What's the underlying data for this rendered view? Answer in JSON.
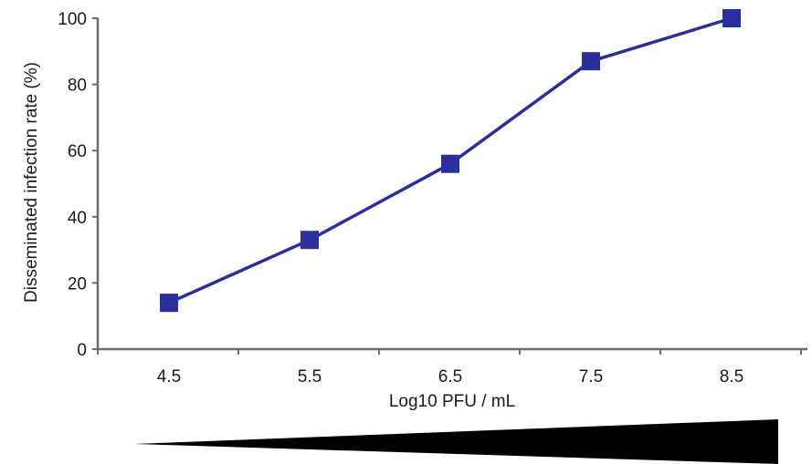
{
  "chart_data": {
    "type": "line",
    "categories": [
      "4.5",
      "5.5",
      "6.5",
      "7.5",
      "8.5"
    ],
    "series": [
      {
        "values": [
          14,
          33,
          56,
          87,
          100
        ],
        "color": "#2b2f9e",
        "marker": "square"
      }
    ],
    "xlabel": "Log10 PFU / mL",
    "ylabel": "Disseminated infection rate (%)",
    "ylim": [
      0,
      100
    ],
    "yticks": [
      "0",
      "20",
      "40",
      "60",
      "80",
      "100"
    ],
    "grid": false,
    "axis_color": "#6b6b6b"
  }
}
